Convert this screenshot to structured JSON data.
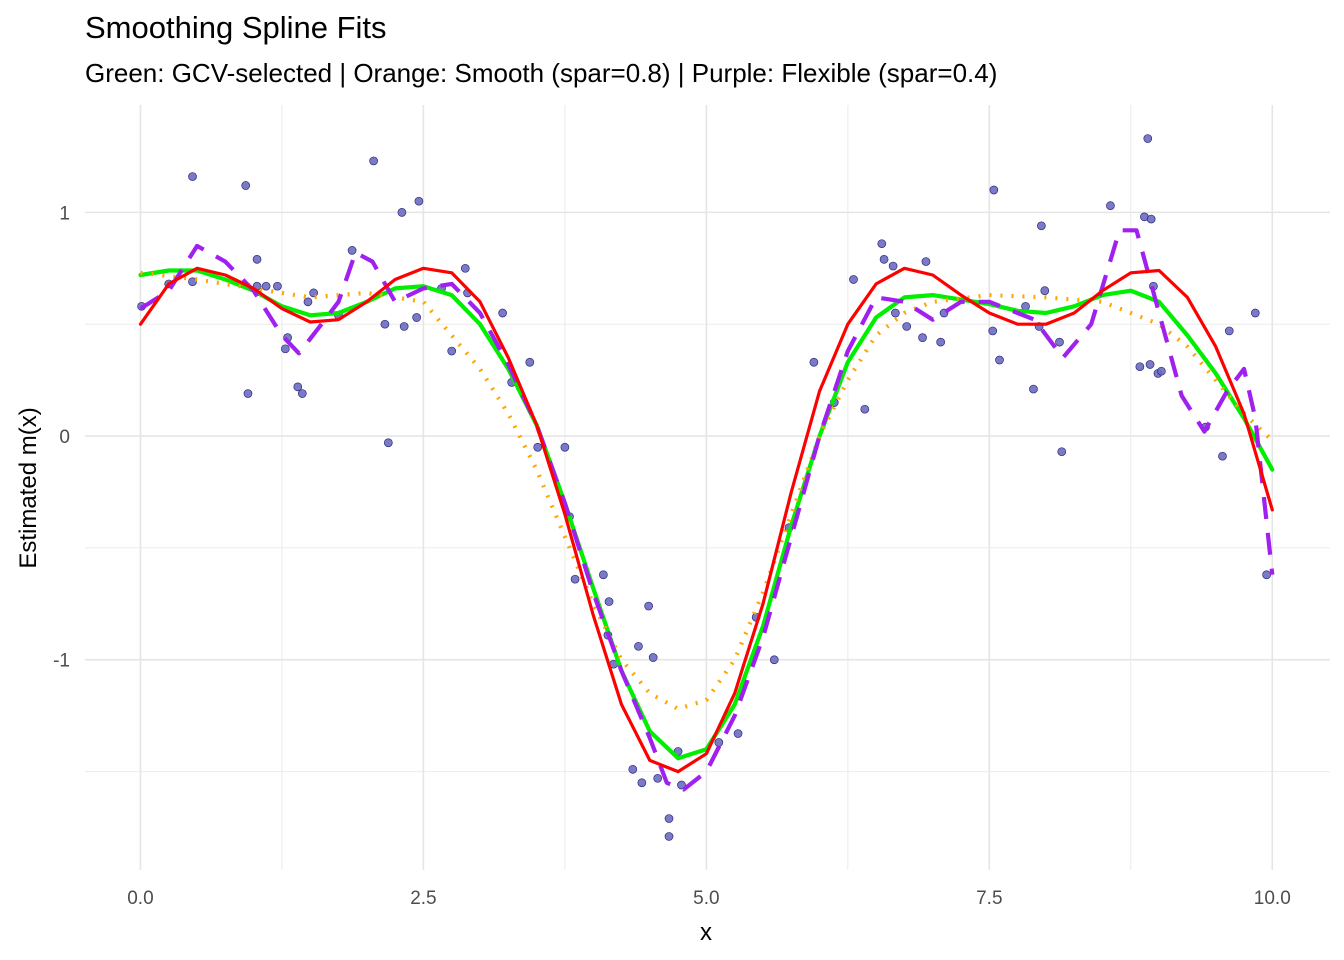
{
  "chart_data": {
    "type": "line",
    "title": "Smoothing Spline Fits",
    "subtitle": "Green: GCV-selected | Orange: Smooth (spar=0.8) | Purple: Flexible (spar=0.4)",
    "xlabel": "x",
    "ylabel": "Estimated m(x)",
    "xlim": [
      -0.49,
      10.51
    ],
    "ylim": [
      -1.94,
      1.48
    ],
    "xticks": [
      0,
      2.5,
      5,
      7.5,
      10
    ],
    "xtick_labels": [
      "0.0",
      "2.5",
      "5.0",
      "7.5",
      "10.0"
    ],
    "yticks": [
      -1,
      0,
      1
    ],
    "ytick_labels": [
      "-1",
      "0",
      "1"
    ],
    "grid": true,
    "legend": "none",
    "points": {
      "color": "#6b6bbf",
      "x": [
        0.01,
        0.25,
        0.46,
        0.46,
        0.93,
        0.95,
        1.03,
        1.03,
        1.11,
        1.21,
        1.28,
        1.3,
        1.39,
        1.43,
        1.48,
        1.53,
        1.75,
        1.87,
        2.06,
        2.16,
        2.19,
        2.31,
        2.33,
        2.44,
        2.46,
        2.66,
        2.75,
        2.87,
        2.89,
        3.2,
        3.28,
        3.44,
        3.51,
        3.75,
        3.79,
        3.84,
        4.09,
        4.14,
        4.13,
        4.18,
        4.4,
        4.49,
        4.53,
        4.35,
        4.43,
        4.57,
        4.67,
        4.67,
        4.75,
        4.78,
        5.11,
        5.28,
        5.44,
        5.6,
        5.73,
        5.95,
        6.13,
        6.3,
        6.4,
        6.55,
        6.57,
        6.65,
        6.67,
        6.77,
        6.91,
        6.94,
        7.07,
        7.1,
        7.54,
        7.53,
        7.59,
        7.82,
        7.89,
        7.96,
        7.94,
        7.99,
        8.12,
        8.14,
        8.57,
        8.83,
        8.87,
        8.9,
        8.93,
        8.92,
        8.95,
        8.99,
        9.02,
        9.41,
        9.56,
        9.62,
        9.85,
        9.95
      ],
      "y": [
        0.58,
        0.68,
        1.16,
        0.69,
        1.12,
        0.19,
        0.79,
        0.67,
        0.67,
        0.67,
        0.39,
        0.44,
        0.22,
        0.19,
        0.6,
        0.64,
        0.54,
        0.83,
        1.23,
        0.5,
        -0.03,
        1.0,
        0.49,
        0.53,
        1.05,
        0.66,
        0.38,
        0.75,
        0.64,
        0.55,
        0.24,
        0.33,
        -0.05,
        -0.05,
        -0.36,
        -0.64,
        -0.62,
        -0.74,
        -0.89,
        -1.02,
        -0.94,
        -0.76,
        -0.99,
        -1.49,
        -1.55,
        -1.53,
        -1.71,
        -1.79,
        -1.41,
        -1.56,
        -1.37,
        -1.33,
        -0.81,
        -1.0,
        -0.41,
        0.33,
        0.15,
        0.7,
        0.12,
        0.86,
        0.79,
        0.76,
        0.55,
        0.49,
        0.44,
        0.78,
        0.42,
        0.55,
        1.1,
        0.47,
        0.34,
        0.58,
        0.21,
        0.94,
        0.49,
        0.65,
        0.42,
        -0.07,
        1.03,
        0.31,
        0.98,
        1.33,
        0.97,
        0.32,
        0.67,
        0.28,
        0.29,
        0.04,
        -0.09,
        0.47,
        0.55,
        -0.62
      ]
    },
    "series": [
      {
        "color": "#00ee00",
        "style": "solid",
        "x": [
          0,
          0.25,
          0.5,
          0.75,
          1,
          1.25,
          1.5,
          1.75,
          2,
          2.25,
          2.5,
          2.75,
          3,
          3.25,
          3.5,
          3.75,
          4,
          4.25,
          4.5,
          4.75,
          5,
          5.25,
          5.5,
          5.75,
          6,
          6.25,
          6.5,
          6.75,
          7,
          7.25,
          7.5,
          7.75,
          8,
          8.25,
          8.5,
          8.75,
          9,
          9.25,
          9.5,
          9.75,
          10
        ],
        "y": [
          0.72,
          0.74,
          0.74,
          0.7,
          0.65,
          0.58,
          0.54,
          0.55,
          0.6,
          0.66,
          0.67,
          0.63,
          0.5,
          0.3,
          0.05,
          -0.3,
          -0.68,
          -1.05,
          -1.32,
          -1.44,
          -1.4,
          -1.2,
          -0.85,
          -0.4,
          0.0,
          0.33,
          0.53,
          0.62,
          0.63,
          0.61,
          0.59,
          0.56,
          0.55,
          0.58,
          0.63,
          0.65,
          0.6,
          0.45,
          0.28,
          0.08,
          -0.15
        ]
      },
      {
        "color": "#ffa500",
        "style": "dotted",
        "x": [
          0,
          0.5,
          1,
          1.5,
          2,
          2.5,
          2.75,
          3,
          3.25,
          3.5,
          3.75,
          4,
          4.25,
          4.5,
          4.75,
          5,
          5.25,
          5.5,
          5.75,
          6,
          6.25,
          6.5,
          6.75,
          7,
          7.5,
          8,
          8.5,
          8.75,
          9,
          9.25,
          9.5,
          9.75,
          10
        ],
        "y": [
          0.73,
          0.7,
          0.66,
          0.62,
          0.64,
          0.6,
          0.45,
          0.3,
          0.1,
          -0.15,
          -0.45,
          -0.75,
          -1.0,
          -1.15,
          -1.22,
          -1.18,
          -1.0,
          -0.7,
          -0.35,
          0.0,
          0.25,
          0.45,
          0.55,
          0.6,
          0.63,
          0.62,
          0.6,
          0.55,
          0.5,
          0.4,
          0.25,
          0.1,
          -0.02
        ]
      },
      {
        "color": "#a020f0",
        "style": "dashed",
        "x": [
          0,
          0.25,
          0.5,
          0.75,
          1,
          1.25,
          1.4,
          1.6,
          1.75,
          1.9,
          2.05,
          2.25,
          2.5,
          2.75,
          3,
          3.25,
          3.5,
          3.75,
          4,
          4.25,
          4.5,
          4.65,
          4.8,
          5,
          5.25,
          5.5,
          5.75,
          6,
          6.25,
          6.5,
          6.75,
          7,
          7.25,
          7.5,
          7.75,
          7.9,
          8.15,
          8.4,
          8.65,
          8.8,
          9,
          9.2,
          9.4,
          9.6,
          9.75,
          9.85,
          10
        ],
        "y": [
          0.57,
          0.65,
          0.85,
          0.78,
          0.65,
          0.45,
          0.37,
          0.5,
          0.6,
          0.82,
          0.78,
          0.6,
          0.66,
          0.68,
          0.55,
          0.32,
          0.05,
          -0.3,
          -0.7,
          -1.05,
          -1.35,
          -1.55,
          -1.58,
          -1.5,
          -1.25,
          -0.9,
          -0.45,
          0.0,
          0.38,
          0.62,
          0.6,
          0.52,
          0.6,
          0.6,
          0.55,
          0.52,
          0.35,
          0.5,
          0.92,
          0.92,
          0.55,
          0.18,
          0.02,
          0.2,
          0.3,
          0.08,
          -0.62
        ]
      },
      {
        "color": "#ff0000",
        "style": "solid",
        "x": [
          0,
          0.25,
          0.5,
          0.75,
          1,
          1.25,
          1.5,
          1.75,
          2,
          2.25,
          2.5,
          2.75,
          3,
          3.25,
          3.5,
          3.75,
          4,
          4.25,
          4.5,
          4.75,
          5,
          5.25,
          5.5,
          5.75,
          6,
          6.25,
          6.5,
          6.75,
          7,
          7.25,
          7.5,
          7.75,
          8,
          8.25,
          8.5,
          8.75,
          9,
          9.25,
          9.5,
          9.75,
          10
        ],
        "y": [
          0.5,
          0.68,
          0.75,
          0.72,
          0.66,
          0.57,
          0.51,
          0.52,
          0.6,
          0.7,
          0.75,
          0.73,
          0.6,
          0.35,
          0.05,
          -0.35,
          -0.8,
          -1.2,
          -1.45,
          -1.5,
          -1.42,
          -1.15,
          -0.75,
          -0.25,
          0.2,
          0.5,
          0.68,
          0.75,
          0.72,
          0.63,
          0.55,
          0.5,
          0.5,
          0.55,
          0.65,
          0.73,
          0.74,
          0.62,
          0.4,
          0.1,
          -0.33
        ]
      }
    ]
  }
}
